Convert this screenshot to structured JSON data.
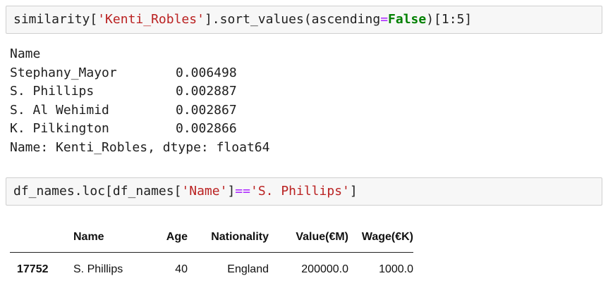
{
  "cell1": {
    "tokens": [
      {
        "t": "similarity[",
        "c": ""
      },
      {
        "t": "'Kenti_Robles'",
        "c": "str"
      },
      {
        "t": "].sort_values(ascending",
        "c": ""
      },
      {
        "t": "=",
        "c": "op"
      },
      {
        "t": "False",
        "c": "kw"
      },
      {
        "t": ")[1:5]",
        "c": ""
      }
    ]
  },
  "output1": {
    "header": "Name",
    "rows": [
      {
        "name": "Stephany_Mayor",
        "value": "0.006498"
      },
      {
        "name": "S. Phillips",
        "value": "0.002887"
      },
      {
        "name": "S. Al Wehimid",
        "value": "0.002867"
      },
      {
        "name": "K. Pilkington",
        "value": "0.002866"
      }
    ],
    "footer": "Name: Kenti_Robles, dtype: float64"
  },
  "cell2": {
    "tokens": [
      {
        "t": "df_names.loc[df_names[",
        "c": ""
      },
      {
        "t": "'Name'",
        "c": "str"
      },
      {
        "t": "]",
        "c": ""
      },
      {
        "t": "==",
        "c": "op"
      },
      {
        "t": "'S. Phillips'",
        "c": "str"
      },
      {
        "t": "]",
        "c": ""
      }
    ]
  },
  "table": {
    "index_header": "",
    "columns": [
      "Name",
      "Age",
      "Nationality",
      "Value(€M)",
      "Wage(€K)"
    ],
    "rows": [
      {
        "index": "17752",
        "cells": [
          "S. Phillips",
          "40",
          "England",
          "200000.0",
          "1000.0"
        ]
      }
    ]
  },
  "colors": {
    "string": "#ba2121",
    "operator": "#aa22ff",
    "keyword": "#008000",
    "input_background": "#f7f7f7",
    "input_border": "#cfcfcf"
  }
}
